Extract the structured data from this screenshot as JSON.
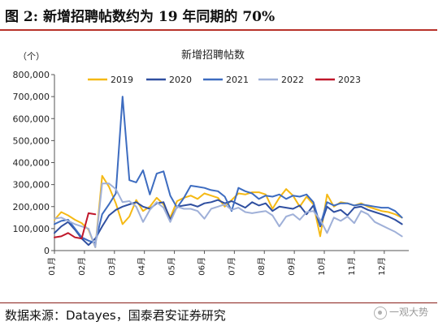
{
  "figure": {
    "title": "图 2:  新增招聘帖数约为 19 年同期的 70%",
    "source": "数据来源：Datayes，国泰君安证券研究",
    "watermark": "一观大势"
  },
  "chart_data": {
    "type": "line",
    "title": "新增招聘帖数",
    "unit_label": "（个）",
    "ylim": [
      0,
      800000
    ],
    "yticks": [
      0,
      100000,
      200000,
      300000,
      400000,
      500000,
      600000,
      700000,
      800000
    ],
    "ytick_labels": [
      "0",
      "100,000",
      "200,000",
      "300,000",
      "400,000",
      "500,000",
      "600,000",
      "700,000",
      "800,000"
    ],
    "x_range": [
      0,
      52
    ],
    "x_month_labels": [
      "01月",
      "02月",
      "03月",
      "04月",
      "05月",
      "06月",
      "07月",
      "08月",
      "09月",
      "10月",
      "11月",
      "12月"
    ],
    "x_month_positions": [
      0,
      4.4,
      8.8,
      13.2,
      17.6,
      22,
      26.4,
      30.8,
      35.2,
      39.6,
      44,
      48.4
    ],
    "grid": false,
    "legend_position": "top",
    "series": [
      {
        "name": "2019",
        "color": "#f5b915",
        "x": [
          0,
          1,
          2,
          3,
          4,
          5,
          6,
          7,
          8,
          9,
          10,
          11,
          12,
          13,
          14,
          15,
          16,
          17,
          18,
          19,
          20,
          21,
          22,
          23,
          24,
          25,
          26,
          27,
          28,
          29,
          30,
          31,
          32,
          33,
          34,
          35,
          36,
          37,
          38,
          39,
          40,
          41,
          42,
          43,
          44,
          45,
          46,
          47,
          48,
          49,
          50,
          51
        ],
        "y": [
          140000,
          175000,
          160000,
          140000,
          125000,
          95000,
          15000,
          340000,
          290000,
          215000,
          120000,
          155000,
          230000,
          180000,
          200000,
          240000,
          210000,
          150000,
          225000,
          240000,
          250000,
          235000,
          260000,
          250000,
          240000,
          200000,
          230000,
          260000,
          255000,
          265000,
          265000,
          255000,
          190000,
          240000,
          280000,
          250000,
          200000,
          245000,
          210000,
          65000,
          255000,
          200000,
          220000,
          215000,
          205000,
          215000,
          200000,
          190000,
          180000,
          175000,
          165000,
          150000
        ]
      },
      {
        "name": "2020",
        "color": "#2f4fa0",
        "x": [
          0,
          1,
          2,
          3,
          4,
          5,
          6,
          7,
          8,
          9,
          10,
          11,
          12,
          13,
          14,
          15,
          16,
          17,
          18,
          19,
          20,
          21,
          22,
          23,
          24,
          25,
          26,
          27,
          28,
          29,
          30,
          31,
          32,
          33,
          34,
          35,
          36,
          37,
          38,
          39,
          40,
          41,
          42,
          43,
          44,
          45,
          46,
          47,
          48,
          49,
          50,
          51
        ],
        "y": [
          80000,
          110000,
          130000,
          95000,
          55000,
          25000,
          55000,
          110000,
          160000,
          185000,
          200000,
          210000,
          220000,
          200000,
          190000,
          215000,
          220000,
          140000,
          200000,
          205000,
          210000,
          200000,
          215000,
          220000,
          230000,
          215000,
          225000,
          210000,
          195000,
          220000,
          205000,
          215000,
          180000,
          200000,
          195000,
          190000,
          205000,
          165000,
          205000,
          110000,
          200000,
          175000,
          185000,
          160000,
          195000,
          200000,
          185000,
          175000,
          165000,
          155000,
          140000,
          120000
        ]
      },
      {
        "name": "2021",
        "color": "#3d6cc0",
        "x": [
          0,
          1,
          2,
          3,
          4,
          5,
          6,
          7,
          8,
          9,
          10,
          11,
          12,
          13,
          14,
          15,
          16,
          17,
          18,
          19,
          20,
          21,
          22,
          23,
          24,
          25,
          26,
          27,
          28,
          29,
          30,
          31,
          32,
          33,
          34,
          35,
          36,
          37,
          38,
          39,
          40,
          41,
          42,
          43,
          44,
          45,
          46,
          47,
          48,
          49,
          50,
          51
        ],
        "y": [
          120000,
          135000,
          140000,
          100000,
          60000,
          45000,
          35000,
          165000,
          210000,
          260000,
          700000,
          320000,
          310000,
          365000,
          255000,
          350000,
          360000,
          250000,
          195000,
          240000,
          295000,
          290000,
          285000,
          275000,
          270000,
          245000,
          180000,
          285000,
          270000,
          260000,
          235000,
          250000,
          245000,
          255000,
          235000,
          250000,
          245000,
          255000,
          220000,
          115000,
          220000,
          205000,
          215000,
          215000,
          205000,
          210000,
          205000,
          200000,
          195000,
          195000,
          180000,
          150000
        ]
      },
      {
        "name": "2022",
        "color": "#9fb0d8",
        "x": [
          0,
          1,
          2,
          3,
          4,
          5,
          6,
          7,
          8,
          9,
          10,
          11,
          12,
          13,
          14,
          15,
          16,
          17,
          18,
          19,
          20,
          21,
          22,
          23,
          24,
          25,
          26,
          27,
          28,
          29,
          30,
          31,
          32,
          33,
          34,
          35,
          36,
          37,
          38,
          39,
          40,
          41,
          42,
          43,
          44,
          45,
          46,
          47,
          48,
          49,
          50,
          51
        ],
        "y": [
          145000,
          150000,
          135000,
          120000,
          110000,
          100000,
          15000,
          305000,
          305000,
          280000,
          220000,
          225000,
          200000,
          130000,
          185000,
          220000,
          195000,
          130000,
          200000,
          190000,
          190000,
          180000,
          145000,
          190000,
          200000,
          210000,
          185000,
          195000,
          175000,
          170000,
          175000,
          180000,
          160000,
          110000,
          155000,
          165000,
          140000,
          175000,
          180000,
          140000,
          80000,
          150000,
          135000,
          155000,
          125000,
          180000,
          165000,
          130000,
          115000,
          100000,
          85000,
          65000
        ]
      },
      {
        "name": "2023",
        "color": "#c0172a",
        "x": [
          0,
          1,
          2,
          3,
          4,
          5,
          6
        ],
        "y": [
          60000,
          65000,
          80000,
          60000,
          55000,
          170000,
          165000
        ]
      }
    ]
  }
}
